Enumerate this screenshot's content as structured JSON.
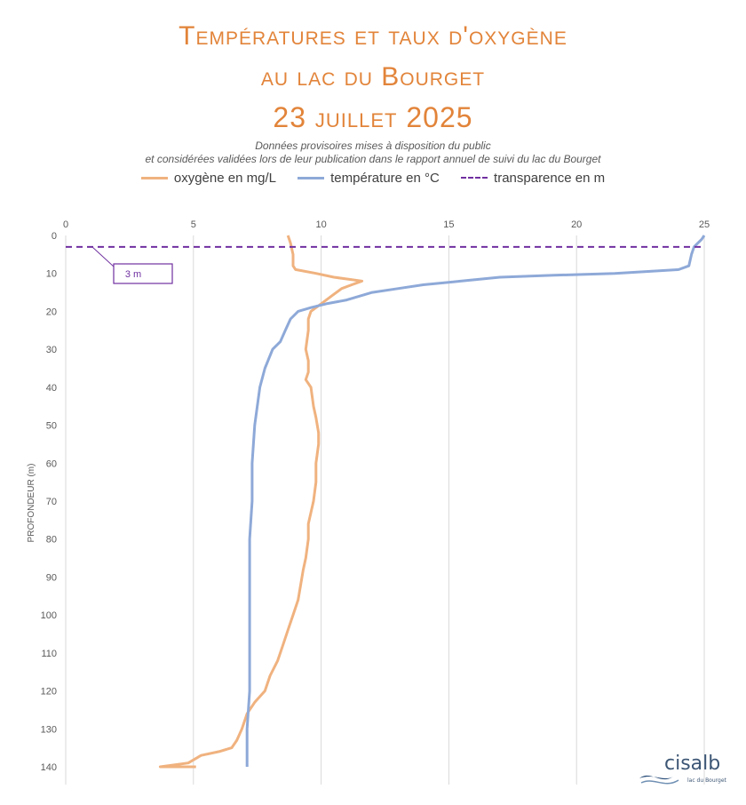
{
  "title": {
    "line1": "Températures et taux d'oxygène",
    "line2": "au lac du Bourget",
    "line3": "23 juillet 2025"
  },
  "subtitle": {
    "line1": "Données provisoires mises à disposition du public",
    "line2": "et considérées validées lors de leur publication dans le rapport annuel de suivi du lac du Bourget"
  },
  "legend": [
    {
      "label": "oxygène en mg/L",
      "color": "#f0b27f",
      "style": "solid"
    },
    {
      "label": "température en °C",
      "color": "#8ea9d8",
      "style": "solid"
    },
    {
      "label": "transparence en m",
      "color": "#7030a0",
      "style": "dashed"
    }
  ],
  "logo": {
    "name": "cisalb",
    "tagline": "lac du Bourget"
  },
  "chart_data": {
    "type": "line",
    "x_axis_position": "top",
    "xlim": [
      0,
      25
    ],
    "x_ticks": [
      0,
      5,
      10,
      15,
      20,
      25
    ],
    "ylim": [
      0,
      140
    ],
    "y_inverted": true,
    "y_ticks": [
      0,
      10,
      20,
      30,
      40,
      50,
      60,
      70,
      80,
      90,
      100,
      110,
      120,
      130,
      140
    ],
    "ylabel": "PROFONDEUR (m)",
    "xlabel": "",
    "grid": "vertical",
    "legend_position": "top",
    "series": [
      {
        "name": "oxygène en mg/L",
        "color": "#f0b27f",
        "points": [
          [
            8.7,
            0
          ],
          [
            8.8,
            2
          ],
          [
            8.9,
            5
          ],
          [
            8.9,
            8
          ],
          [
            9.0,
            9
          ],
          [
            9.8,
            10
          ],
          [
            10.5,
            11
          ],
          [
            11.6,
            12
          ],
          [
            11.2,
            13
          ],
          [
            10.8,
            14
          ],
          [
            10.4,
            16
          ],
          [
            10.0,
            18
          ],
          [
            9.6,
            20
          ],
          [
            9.5,
            22
          ],
          [
            9.5,
            25
          ],
          [
            9.4,
            30
          ],
          [
            9.5,
            33
          ],
          [
            9.5,
            36
          ],
          [
            9.4,
            38
          ],
          [
            9.6,
            40
          ],
          [
            9.7,
            45
          ],
          [
            9.8,
            48
          ],
          [
            9.9,
            52
          ],
          [
            9.9,
            55
          ],
          [
            9.8,
            60
          ],
          [
            9.8,
            65
          ],
          [
            9.7,
            70
          ],
          [
            9.6,
            73
          ],
          [
            9.5,
            76
          ],
          [
            9.5,
            80
          ],
          [
            9.4,
            85
          ],
          [
            9.3,
            88
          ],
          [
            9.2,
            92
          ],
          [
            9.1,
            96
          ],
          [
            8.9,
            100
          ],
          [
            8.7,
            104
          ],
          [
            8.5,
            108
          ],
          [
            8.3,
            112
          ],
          [
            8.0,
            116
          ],
          [
            7.8,
            120
          ],
          [
            7.4,
            123
          ],
          [
            7.1,
            126
          ],
          [
            6.9,
            130
          ],
          [
            6.7,
            133
          ],
          [
            6.5,
            135
          ],
          [
            6.0,
            136
          ],
          [
            5.3,
            137
          ],
          [
            4.8,
            139
          ],
          [
            3.7,
            140
          ],
          [
            5.1,
            140
          ]
        ]
      },
      {
        "name": "température en °C",
        "color": "#8ea9d8",
        "points": [
          [
            25.0,
            0
          ],
          [
            24.9,
            1
          ],
          [
            24.6,
            3
          ],
          [
            24.5,
            5
          ],
          [
            24.4,
            8
          ],
          [
            24.0,
            9
          ],
          [
            21.5,
            10
          ],
          [
            19.0,
            10.5
          ],
          [
            17.0,
            11
          ],
          [
            15.5,
            12
          ],
          [
            14.0,
            13
          ],
          [
            13.0,
            14
          ],
          [
            12.0,
            15
          ],
          [
            11.0,
            17
          ],
          [
            10.2,
            18
          ],
          [
            9.6,
            19
          ],
          [
            9.1,
            20
          ],
          [
            8.8,
            22
          ],
          [
            8.6,
            25
          ],
          [
            8.4,
            28
          ],
          [
            8.1,
            30
          ],
          [
            7.8,
            35
          ],
          [
            7.6,
            40
          ],
          [
            7.5,
            45
          ],
          [
            7.4,
            50
          ],
          [
            7.3,
            60
          ],
          [
            7.3,
            70
          ],
          [
            7.2,
            80
          ],
          [
            7.2,
            90
          ],
          [
            7.2,
            100
          ],
          [
            7.2,
            110
          ],
          [
            7.2,
            120
          ],
          [
            7.1,
            130
          ],
          [
            7.1,
            140
          ]
        ]
      },
      {
        "name": "transparence en m",
        "color": "#7030a0",
        "style": "dashed",
        "points": [
          [
            0,
            3
          ],
          [
            25,
            3
          ]
        ],
        "annotation": "3 m"
      }
    ]
  }
}
